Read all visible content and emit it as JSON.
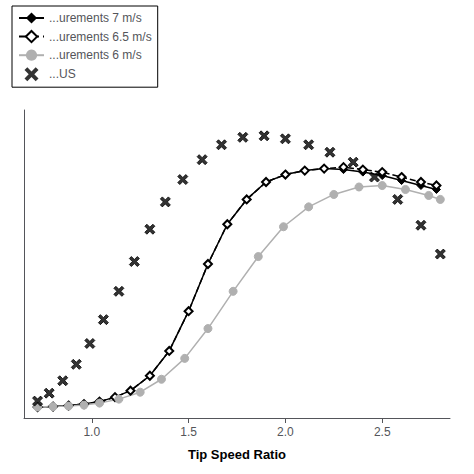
{
  "chart_data": {
    "type": "line",
    "xlabel": "Tip Speed Ratio",
    "xlim": [
      0.65,
      2.85
    ],
    "ylim": [
      -0.02,
      0.6
    ],
    "xticks": [
      {
        "value": 1.0,
        "label": "1.0"
      },
      1.5,
      {
        "value": 2.0,
        "label": "2.0"
      },
      2.5
    ],
    "yticks": [],
    "tick_labels": "x",
    "grid": false,
    "legend": "upper left",
    "series": [
      {
        "name": "...urements 7 m/s",
        "type": "line",
        "color": "#000000",
        "marker": "diamond",
        "line_style": "solid",
        "x": [
          0.72,
          0.8,
          0.88,
          0.96,
          1.04,
          1.12,
          1.2,
          1.3,
          1.4,
          1.5,
          1.6,
          1.7,
          1.8,
          1.9,
          2.0,
          2.1,
          2.2,
          2.3,
          2.4,
          2.5,
          2.6,
          2.7,
          2.78
        ],
        "values": [
          0.002,
          0.003,
          0.005,
          0.008,
          0.013,
          0.022,
          0.035,
          0.065,
          0.115,
          0.195,
          0.29,
          0.37,
          0.42,
          0.455,
          0.47,
          0.478,
          0.482,
          0.48,
          0.475,
          0.468,
          0.458,
          0.448,
          0.44
        ]
      },
      {
        "name": "...urements 6.5 m/s",
        "type": "line",
        "color": "#000000",
        "marker": "diamond_open",
        "line_style": "dashed",
        "x": [
          0.72,
          0.8,
          0.88,
          0.96,
          1.04,
          1.12,
          1.2,
          1.3,
          1.4,
          1.5,
          1.6,
          1.7,
          1.8,
          1.9,
          2.0,
          2.1,
          2.2,
          2.3,
          2.4,
          2.5,
          2.6,
          2.7,
          2.78
        ],
        "values": [
          0.002,
          0.003,
          0.005,
          0.008,
          0.013,
          0.022,
          0.035,
          0.065,
          0.115,
          0.195,
          0.29,
          0.37,
          0.42,
          0.455,
          0.47,
          0.478,
          0.482,
          0.485,
          0.48,
          0.475,
          0.465,
          0.455,
          0.448
        ]
      },
      {
        "name": "...urements 6 m/s",
        "type": "line",
        "color": "#b0b0b0",
        "marker": "circle",
        "line_style": "solid",
        "x": [
          0.72,
          0.8,
          0.88,
          0.96,
          1.04,
          1.14,
          1.25,
          1.36,
          1.48,
          1.6,
          1.73,
          1.86,
          1.99,
          2.12,
          2.25,
          2.38,
          2.5,
          2.62,
          2.74,
          2.8
        ],
        "values": [
          0.002,
          0.003,
          0.004,
          0.006,
          0.01,
          0.018,
          0.032,
          0.058,
          0.1,
          0.16,
          0.235,
          0.305,
          0.365,
          0.405,
          0.43,
          0.445,
          0.448,
          0.44,
          0.428,
          0.42
        ]
      },
      {
        "name": "...US",
        "type": "scatter",
        "color": "#000000",
        "marker": "x",
        "line_style": "none",
        "x": [
          0.72,
          0.78,
          0.85,
          0.92,
          0.99,
          1.06,
          1.14,
          1.22,
          1.3,
          1.38,
          1.47,
          1.57,
          1.67,
          1.78,
          1.89,
          2.0,
          2.12,
          2.23,
          2.35,
          2.46,
          2.58,
          2.7,
          2.8
        ],
        "values": [
          0.014,
          0.03,
          0.055,
          0.088,
          0.13,
          0.178,
          0.235,
          0.295,
          0.36,
          0.415,
          0.46,
          0.5,
          0.53,
          0.545,
          0.548,
          0.542,
          0.53,
          0.515,
          0.495,
          0.465,
          0.42,
          0.368,
          0.31
        ]
      }
    ]
  }
}
